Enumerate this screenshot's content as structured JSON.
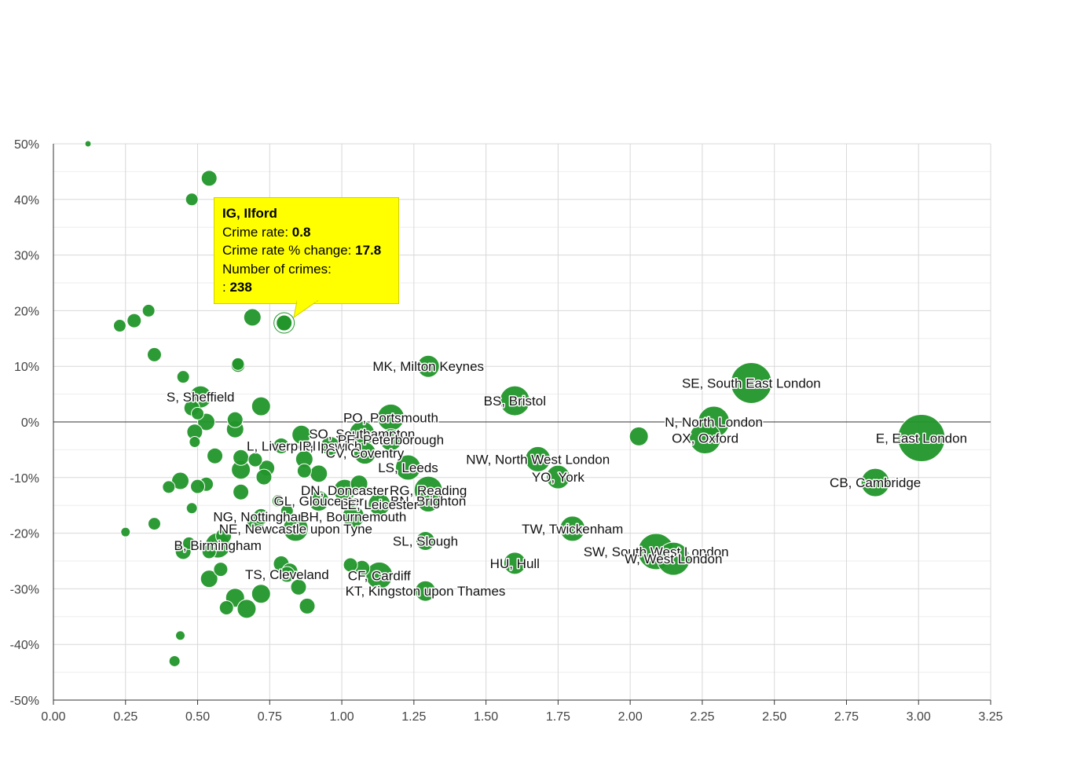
{
  "chart_data": {
    "type": "scatter",
    "x_ticks": [
      "0.00",
      "0.25",
      "0.50",
      "0.75",
      "1.00",
      "1.25",
      "1.50",
      "1.75",
      "2.00",
      "2.25",
      "2.50",
      "2.75",
      "3.00",
      "3.25"
    ],
    "y_ticks": [
      "50%",
      "40%",
      "30%",
      "20%",
      "10%",
      "0%",
      "-10%",
      "-20%",
      "-30%",
      "-40%",
      "-50%"
    ],
    "xlim": [
      0,
      3.25
    ],
    "ylim": [
      -50,
      50
    ],
    "grid": true,
    "colors": {
      "bubble": "#22962a",
      "tooltip_bg": "#ffff00",
      "grid": "#dddddd",
      "axis": "#333333"
    },
    "points": [
      {
        "x": 0.12,
        "y": 50,
        "s": 4
      },
      {
        "x": 0.54,
        "y": 43.8,
        "s": 10
      },
      {
        "x": 0.48,
        "y": 40,
        "s": 8
      },
      {
        "x": 0.33,
        "y": 20,
        "s": 8
      },
      {
        "x": 0.28,
        "y": 18.2,
        "s": 9
      },
      {
        "x": 0.23,
        "y": 17.3,
        "s": 8
      },
      {
        "x": 0.69,
        "y": 18.8,
        "s": 11
      },
      {
        "x": 0.35,
        "y": 12.1,
        "s": 9
      },
      {
        "x": 0.64,
        "y": 10.4,
        "s": 8
      },
      {
        "x": 0.64,
        "y": 10.2,
        "s": 9
      },
      {
        "x": 0.45,
        "y": 8.1,
        "s": 8
      },
      {
        "x": 1.3,
        "y": 10,
        "s": 14,
        "label": "MK, Milton Keynes"
      },
      {
        "x": 1.6,
        "y": 3.8,
        "s": 19,
        "label": "BS, Bristol"
      },
      {
        "x": 2.42,
        "y": 7,
        "s": 26,
        "label": "SE, South East London"
      },
      {
        "x": 0.51,
        "y": 4.5,
        "s": 14,
        "label": "S, Sheffield"
      },
      {
        "x": 0.48,
        "y": 2.5,
        "s": 10
      },
      {
        "x": 0.5,
        "y": 1.5,
        "s": 8
      },
      {
        "x": 0.72,
        "y": 2.8,
        "s": 12
      },
      {
        "x": 0.53,
        "y": 0,
        "s": 11
      },
      {
        "x": 0.63,
        "y": 0.4,
        "s": 10
      },
      {
        "x": 0.63,
        "y": -1.3,
        "s": 11
      },
      {
        "x": 0.49,
        "y": -1.8,
        "s": 10
      },
      {
        "x": 0.49,
        "y": -3.6,
        "s": 7
      },
      {
        "x": 1.17,
        "y": 0.8,
        "s": 17,
        "label": "PO, Portsmouth"
      },
      {
        "x": 2.29,
        "y": 0,
        "s": 20,
        "label": "N, North London"
      },
      {
        "x": 2.03,
        "y": -2.6,
        "s": 12
      },
      {
        "x": 2.26,
        "y": -2.9,
        "s": 20,
        "label": "OX, Oxford"
      },
      {
        "x": 3.01,
        "y": -2.9,
        "s": 30,
        "label": "E, East London"
      },
      {
        "x": 0.86,
        "y": -2.3,
        "s": 12
      },
      {
        "x": 1.07,
        "y": -2.1,
        "s": 16,
        "label": "SO, Southampton"
      },
      {
        "x": 1.17,
        "y": -3.2,
        "s": 14,
        "label": "PE, Peterborough"
      },
      {
        "x": 0.79,
        "y": -4.3,
        "s": 10,
        "label": "L, Liverpool"
      },
      {
        "x": 0.96,
        "y": -4.3,
        "s": 12,
        "label": "IP, Ipswich"
      },
      {
        "x": 1.08,
        "y": -5.6,
        "s": 14,
        "label": "CV, Coventry"
      },
      {
        "x": 0.56,
        "y": -6.1,
        "s": 10
      },
      {
        "x": 0.65,
        "y": -6.4,
        "s": 10
      },
      {
        "x": 0.7,
        "y": -6.8,
        "s": 9
      },
      {
        "x": 0.87,
        "y": -6.7,
        "s": 11
      },
      {
        "x": 1.68,
        "y": -6.7,
        "s": 16,
        "label": "NW, North West London"
      },
      {
        "x": 1.23,
        "y": -8.2,
        "s": 16,
        "label": "LS, Leeds"
      },
      {
        "x": 0.74,
        "y": -8.3,
        "s": 10
      },
      {
        "x": 0.65,
        "y": -8.6,
        "s": 12
      },
      {
        "x": 0.87,
        "y": -8.8,
        "s": 9
      },
      {
        "x": 0.92,
        "y": -9.3,
        "s": 11
      },
      {
        "x": 0.73,
        "y": -9.9,
        "s": 10
      },
      {
        "x": 1.75,
        "y": -9.9,
        "s": 15,
        "label": "YO, York"
      },
      {
        "x": 0.44,
        "y": -10.6,
        "s": 11
      },
      {
        "x": 0.53,
        "y": -11.2,
        "s": 9
      },
      {
        "x": 0.5,
        "y": -11.6,
        "s": 9
      },
      {
        "x": 0.4,
        "y": -11.7,
        "s": 8
      },
      {
        "x": 1.06,
        "y": -11.1,
        "s": 11
      },
      {
        "x": 2.85,
        "y": -10.9,
        "s": 18,
        "label": "CB, Cambridge"
      },
      {
        "x": 1.01,
        "y": -12.3,
        "s": 14,
        "label": "DN, Doncaster"
      },
      {
        "x": 1.3,
        "y": -12.3,
        "s": 18,
        "label": "RG, Reading"
      },
      {
        "x": 0.65,
        "y": -12.6,
        "s": 10
      },
      {
        "x": 0.78,
        "y": -14.2,
        "s": 8
      },
      {
        "x": 0.92,
        "y": -14.2,
        "s": 13,
        "label": "GL, Gloucester"
      },
      {
        "x": 1.3,
        "y": -14.2,
        "s": 14,
        "label": "BN, Brighton"
      },
      {
        "x": 1.13,
        "y": -14.8,
        "s": 14,
        "label": "LE, Leicester"
      },
      {
        "x": 0.48,
        "y": -15.5,
        "s": 7
      },
      {
        "x": 0.81,
        "y": -16,
        "s": 8
      },
      {
        "x": 0.72,
        "y": -17,
        "s": 10,
        "label": "NG, Nottingham"
      },
      {
        "x": 1.04,
        "y": -17,
        "s": 14,
        "label": "BH, Bournemouth"
      },
      {
        "x": 0.35,
        "y": -18.3,
        "s": 8
      },
      {
        "x": 0.7,
        "y": -18.5,
        "s": 11
      },
      {
        "x": 0.84,
        "y": -19.2,
        "s": 16,
        "label": "NE, Newcastle upon Tyne"
      },
      {
        "x": 1.8,
        "y": -19.2,
        "s": 16,
        "label": "TW, Twickenham"
      },
      {
        "x": 0.25,
        "y": -19.8,
        "s": 6
      },
      {
        "x": 0.59,
        "y": -20.5,
        "s": 10
      },
      {
        "x": 1.29,
        "y": -21.4,
        "s": 12,
        "label": "SL, Slough"
      },
      {
        "x": 0.57,
        "y": -22.2,
        "s": 16,
        "label": "B, Birmingham"
      },
      {
        "x": 0.47,
        "y": -21.8,
        "s": 8
      },
      {
        "x": 0.45,
        "y": -23.3,
        "s": 10
      },
      {
        "x": 0.54,
        "y": -23.3,
        "s": 9
      },
      {
        "x": 2.09,
        "y": -23.3,
        "s": 23,
        "label": "SW, South West London"
      },
      {
        "x": 2.15,
        "y": -24.6,
        "s": 21,
        "label": "W, West London"
      },
      {
        "x": 0.79,
        "y": -25.5,
        "s": 10
      },
      {
        "x": 1.03,
        "y": -25.7,
        "s": 9
      },
      {
        "x": 1.6,
        "y": -25.4,
        "s": 14,
        "label": "HU, Hull"
      },
      {
        "x": 0.58,
        "y": -26.5,
        "s": 9
      },
      {
        "x": 0.82,
        "y": -26.8,
        "s": 10
      },
      {
        "x": 1.07,
        "y": -26.3,
        "s": 10
      },
      {
        "x": 0.81,
        "y": -27.4,
        "s": 10,
        "label": "TS, Cleveland"
      },
      {
        "x": 1.13,
        "y": -27.6,
        "s": 17,
        "label": "CF, Cardiff"
      },
      {
        "x": 0.54,
        "y": -28.2,
        "s": 11
      },
      {
        "x": 0.85,
        "y": -29.7,
        "s": 10
      },
      {
        "x": 1.29,
        "y": -30.4,
        "s": 13,
        "label": "KT, Kingston upon Thames"
      },
      {
        "x": 0.72,
        "y": -30.9,
        "s": 12
      },
      {
        "x": 0.63,
        "y": -31.6,
        "s": 12
      },
      {
        "x": 0.6,
        "y": -33.4,
        "s": 9
      },
      {
        "x": 0.67,
        "y": -33.6,
        "s": 12
      },
      {
        "x": 0.88,
        "y": -33.1,
        "s": 10
      },
      {
        "x": 0.44,
        "y": -38.4,
        "s": 6
      },
      {
        "x": 0.42,
        "y": -43,
        "s": 7
      }
    ],
    "highlight": {
      "x": 0.8,
      "y": 17.8,
      "s": 11
    }
  },
  "tooltip": {
    "title": "IG, Ilford",
    "rate_label": "Crime rate: ",
    "rate_value": "0.8",
    "change_label": "Crime rate % change: ",
    "change_value": "17.8",
    "count_label": "Number of crimes:",
    "count_prefix": ": ",
    "count_value": "238"
  }
}
